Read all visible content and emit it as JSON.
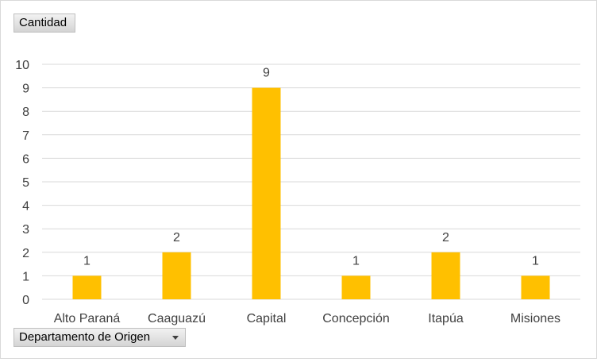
{
  "value_field": {
    "label": "Cantidad"
  },
  "axis_field": {
    "label": "Departamento de Origen",
    "icon": "dropdown-arrow-icon"
  },
  "chart_data": {
    "type": "bar",
    "categories": [
      "Alto Paraná",
      "Caaguazú",
      "Capital",
      "Concepción",
      "Itapúa",
      "Misiones"
    ],
    "values": [
      1,
      2,
      9,
      1,
      2,
      1
    ],
    "ylim": [
      0,
      10
    ],
    "yticks": [
      0,
      1,
      2,
      3,
      4,
      5,
      6,
      7,
      8,
      9,
      10
    ],
    "grid": true,
    "data_labels": true,
    "legend": "none",
    "colors": {
      "bar": "#FFC000",
      "grid": "#d9d9d9",
      "text": "#404040"
    }
  }
}
